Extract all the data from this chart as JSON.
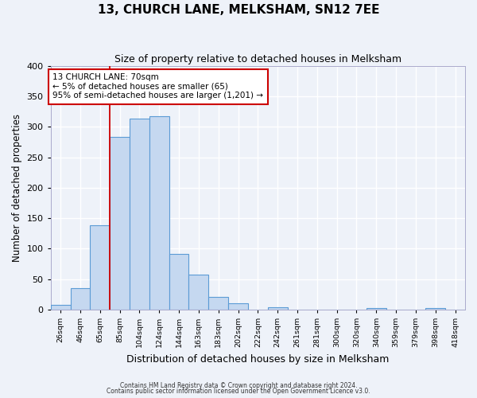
{
  "title": "13, CHURCH LANE, MELKSHAM, SN12 7EE",
  "subtitle": "Size of property relative to detached houses in Melksham",
  "xlabel": "Distribution of detached houses by size in Melksham",
  "ylabel": "Number of detached properties",
  "bin_labels": [
    "26sqm",
    "46sqm",
    "65sqm",
    "85sqm",
    "104sqm",
    "124sqm",
    "144sqm",
    "163sqm",
    "183sqm",
    "202sqm",
    "222sqm",
    "242sqm",
    "261sqm",
    "281sqm",
    "300sqm",
    "320sqm",
    "340sqm",
    "359sqm",
    "379sqm",
    "398sqm",
    "418sqm"
  ],
  "bar_values": [
    7,
    35,
    139,
    283,
    314,
    317,
    91,
    57,
    20,
    10,
    0,
    4,
    0,
    0,
    0,
    0,
    2,
    0,
    0,
    2,
    0
  ],
  "bar_color": "#c5d8f0",
  "bar_edge_color": "#5b9bd5",
  "vline_x": 2,
  "vline_color": "#cc0000",
  "annotation_text": "13 CHURCH LANE: 70sqm\n← 5% of detached houses are smaller (65)\n95% of semi-detached houses are larger (1,201) →",
  "annotation_box_edge": "#cc0000",
  "ylim": [
    0,
    400
  ],
  "yticks": [
    0,
    50,
    100,
    150,
    200,
    250,
    300,
    350,
    400
  ],
  "footnote1": "Contains HM Land Registry data © Crown copyright and database right 2024.",
  "footnote2": "Contains public sector information licensed under the Open Government Licence v3.0.",
  "bg_color": "#eef2f9",
  "grid_color": "#ffffff",
  "title_fontsize": 11,
  "subtitle_fontsize": 9
}
